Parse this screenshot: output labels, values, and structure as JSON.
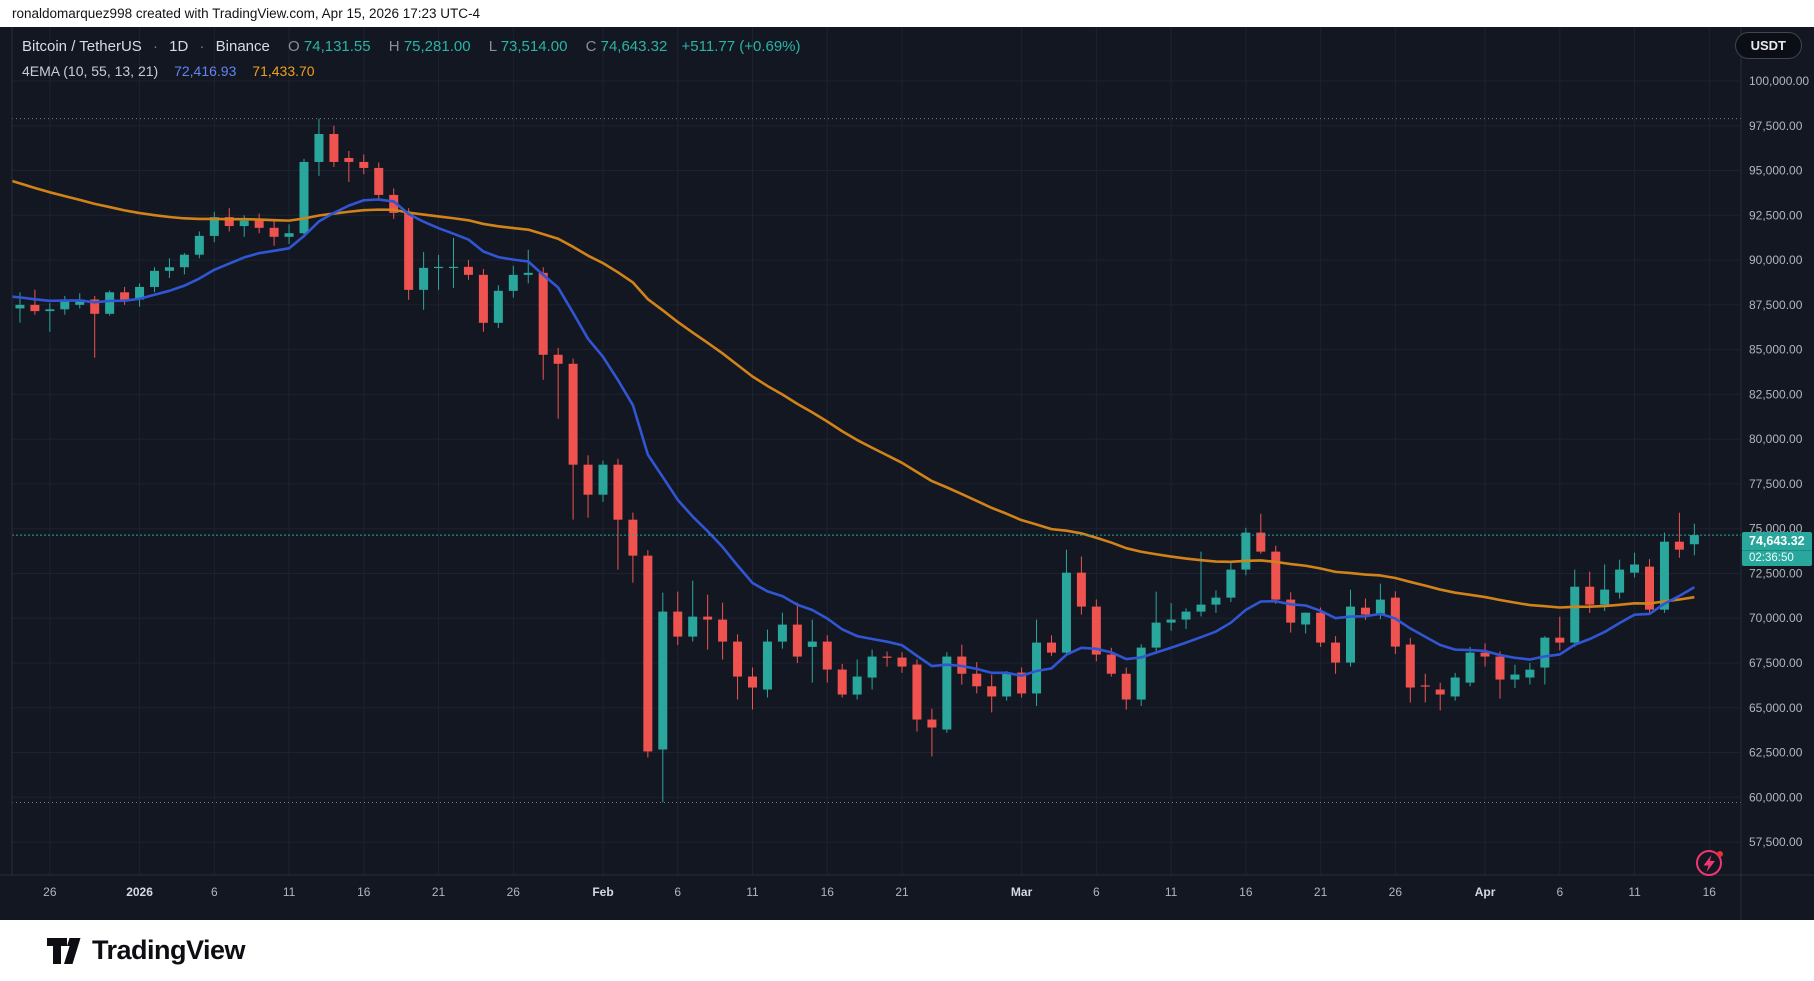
{
  "attribution": "ronaldomarquez998 created with TradingView.com, Apr 15, 2026 17:23 UTC-4",
  "header": {
    "symbol_title": "Bitcoin / TetherUS",
    "interval": "1D",
    "exchange": "Binance",
    "sep": "·",
    "ohlc": {
      "o_label": "O",
      "o": "74,131.55",
      "h_label": "H",
      "h": "75,281.00",
      "l_label": "L",
      "l": "73,514.00",
      "c_label": "C",
      "c": "74,643.32",
      "change": "+511.77 (+0.69%)"
    },
    "indicator": {
      "title": "4EMA (10, 55, 13, 21)",
      "value_fast": "72,416.93",
      "value_slow": "71,433.70"
    }
  },
  "axis_right": {
    "currency_button": "USDT",
    "labels": [
      {
        "v": 100000,
        "label": "100,000.00"
      },
      {
        "v": 97500,
        "label": "97,500.00"
      },
      {
        "v": 95000,
        "label": "95,000.00"
      },
      {
        "v": 92500,
        "label": "92,500.00"
      },
      {
        "v": 90000,
        "label": "90,000.00"
      },
      {
        "v": 87500,
        "label": "87,500.00"
      },
      {
        "v": 85000,
        "label": "85,000.00"
      },
      {
        "v": 82500,
        "label": "82,500.00"
      },
      {
        "v": 80000,
        "label": "80,000.00"
      },
      {
        "v": 77500,
        "label": "77,500.00"
      },
      {
        "v": 75000,
        "label": "75,000.00"
      },
      {
        "v": 72500,
        "label": "72,500.00"
      },
      {
        "v": 70000,
        "label": "70,000.00"
      },
      {
        "v": 67500,
        "label": "67,500.00"
      },
      {
        "v": 65000,
        "label": "65,000.00"
      },
      {
        "v": 62500,
        "label": "62,500.00"
      },
      {
        "v": 60000,
        "label": "60,000.00"
      },
      {
        "v": 57500,
        "label": "57,500.00"
      }
    ]
  },
  "price_badge": {
    "price": "74,643.32",
    "countdown": "02:36:50"
  },
  "time_axis": {
    "ticks": [
      {
        "i": 3,
        "label": "26",
        "bold": false
      },
      {
        "i": 9,
        "label": "2026",
        "bold": true
      },
      {
        "i": 14,
        "label": "6",
        "bold": false
      },
      {
        "i": 19,
        "label": "11",
        "bold": false
      },
      {
        "i": 24,
        "label": "16",
        "bold": false
      },
      {
        "i": 29,
        "label": "21",
        "bold": false
      },
      {
        "i": 34,
        "label": "26",
        "bold": false
      },
      {
        "i": 40,
        "label": "Feb",
        "bold": true
      },
      {
        "i": 45,
        "label": "6",
        "bold": false
      },
      {
        "i": 50,
        "label": "11",
        "bold": false
      },
      {
        "i": 55,
        "label": "16",
        "bold": false
      },
      {
        "i": 60,
        "label": "21",
        "bold": false
      },
      {
        "i": 68,
        "label": "Mar",
        "bold": true
      },
      {
        "i": 73,
        "label": "6",
        "bold": false
      },
      {
        "i": 78,
        "label": "11",
        "bold": false
      },
      {
        "i": 83,
        "label": "16",
        "bold": false
      },
      {
        "i": 88,
        "label": "21",
        "bold": false
      },
      {
        "i": 93,
        "label": "26",
        "bold": false
      },
      {
        "i": 99,
        "label": "Apr",
        "bold": true
      },
      {
        "i": 104,
        "label": "6",
        "bold": false
      },
      {
        "i": 109,
        "label": "11",
        "bold": false
      },
      {
        "i": 114,
        "label": "16",
        "bold": false
      }
    ]
  },
  "logo": {
    "text": "TradingView"
  },
  "colors": {
    "bg": "#131722",
    "grid": "#1e2230",
    "up": "#2aa79d",
    "down": "#ef5350",
    "ema_fast": "#3156d3",
    "ema_slow": "#d1831a",
    "axis_text": "#b2b5be",
    "axis_text_bold": "#d6d9e0",
    "range_dotted": "#787b86",
    "price_line": "#2aa79d",
    "separator": "#2a2e39",
    "badge_bg": "#2aa79d",
    "event_pink": "#f23674"
  },
  "chart_data": {
    "type": "candlestick",
    "title": "Bitcoin / TetherUS · 1D · Binance",
    "symbol": "BTCUSDT",
    "interval": "1D",
    "legend": [
      "EMA fast (blue) 72,416.93",
      "EMA slow (orange) 71,433.70"
    ],
    "y_axis": {
      "min": 56000,
      "max": 101200,
      "tick_step": 2500,
      "grid": true
    },
    "range_high_line": 97900,
    "range_low_line": 59710,
    "last_price": 74643.32,
    "ema_fast": {
      "period": 13,
      "seed": 88100
    },
    "ema_slow": {
      "period": 55,
      "seed": 94800
    },
    "candles": [
      [
        "2025-12-23",
        87700,
        88100,
        86900,
        87300
      ],
      [
        "2025-12-24",
        87300,
        88200,
        86500,
        87500
      ],
      [
        "2025-12-25",
        87500,
        88350,
        86950,
        87150
      ],
      [
        "2025-12-26",
        87150,
        87600,
        86000,
        87250
      ],
      [
        "2025-12-27",
        87250,
        88000,
        86950,
        87800
      ],
      [
        "2025-12-28",
        87500,
        88150,
        87300,
        87800
      ],
      [
        "2025-12-29",
        87800,
        88000,
        84550,
        87000
      ],
      [
        "2025-12-30",
        87000,
        88300,
        86900,
        88200
      ],
      [
        "2025-12-31",
        88200,
        88500,
        87500,
        87800
      ],
      [
        "2026-01-01",
        87800,
        88700,
        87400,
        88500
      ],
      [
        "2026-01-02",
        88500,
        89600,
        88200,
        89400
      ],
      [
        "2026-01-03",
        89400,
        90100,
        89000,
        89600
      ],
      [
        "2026-01-04",
        89600,
        90400,
        89200,
        90300
      ],
      [
        "2026-01-05",
        90300,
        91600,
        90100,
        91350
      ],
      [
        "2026-01-06",
        91350,
        92700,
        91000,
        92400
      ],
      [
        "2026-01-07",
        92400,
        92900,
        91600,
        91900
      ],
      [
        "2026-01-08",
        91900,
        92500,
        91300,
        92200
      ],
      [
        "2026-01-09",
        92200,
        92600,
        91500,
        91800
      ],
      [
        "2026-01-10",
        91800,
        92300,
        90800,
        91300
      ],
      [
        "2026-01-11",
        91300,
        92000,
        90900,
        91500
      ],
      [
        "2026-01-12",
        91500,
        95650,
        91300,
        95480
      ],
      [
        "2026-01-13",
        95480,
        97900,
        94700,
        97040
      ],
      [
        "2026-01-14",
        97040,
        97500,
        95200,
        95480
      ],
      [
        "2026-01-15",
        95700,
        96090,
        94365,
        95480
      ],
      [
        "2026-01-16",
        95480,
        95900,
        94800,
        95145
      ],
      [
        "2026-01-17",
        95145,
        95450,
        93400,
        93639
      ],
      [
        "2026-01-18",
        93639,
        94000,
        92300,
        92634
      ],
      [
        "2026-01-19",
        92634,
        92900,
        87780,
        88338
      ],
      [
        "2026-01-20",
        88338,
        90458,
        87222,
        89566
      ],
      [
        "2026-01-21",
        89566,
        90291,
        88338,
        89620
      ],
      [
        "2026-01-22",
        89620,
        91240,
        88450,
        89622
      ],
      [
        "2026-01-23",
        89622,
        90000,
        88900,
        89175
      ],
      [
        "2026-01-24",
        89175,
        89500,
        85994,
        86496
      ],
      [
        "2026-01-25",
        86496,
        88600,
        86200,
        88282
      ],
      [
        "2026-01-26",
        88282,
        89678,
        87900,
        89175
      ],
      [
        "2026-01-27",
        89175,
        90570,
        88700,
        89287
      ],
      [
        "2026-01-28",
        89287,
        89600,
        83316,
        84712
      ],
      [
        "2026-01-29",
        84712,
        85100,
        81140,
        84209
      ],
      [
        "2026-01-30",
        84209,
        84500,
        75506,
        78574
      ],
      [
        "2026-01-31",
        78574,
        79100,
        75617,
        76900
      ],
      [
        "2026-02-01",
        76900,
        78800,
        76500,
        78574
      ],
      [
        "2026-02-02",
        78574,
        78900,
        72713,
        75503
      ],
      [
        "2026-02-03",
        75503,
        75900,
        71985,
        73494
      ],
      [
        "2026-02-04",
        73494,
        73800,
        62225,
        62560
      ],
      [
        "2026-02-05",
        62670,
        71430,
        59710,
        70370
      ],
      [
        "2026-02-06",
        70370,
        71485,
        68500,
        68975
      ],
      [
        "2026-02-07",
        68975,
        72099,
        68700,
        70090
      ],
      [
        "2026-02-08",
        70090,
        71317,
        68250,
        69923
      ],
      [
        "2026-02-09",
        69923,
        70871,
        67692,
        68696
      ],
      [
        "2026-02-10",
        68696,
        69100,
        65459,
        66743
      ],
      [
        "2026-02-11",
        66743,
        67250,
        64901,
        66129
      ],
      [
        "2026-02-12",
        66018,
        69365,
        65571,
        68696
      ],
      [
        "2026-02-13",
        68696,
        70313,
        68300,
        69644
      ],
      [
        "2026-02-14",
        69644,
        70871,
        67500,
        67859
      ],
      [
        "2026-02-15",
        68400,
        69923,
        66408,
        68696
      ],
      [
        "2026-02-16",
        68696,
        69050,
        66408,
        67134
      ],
      [
        "2026-02-17",
        67134,
        67450,
        65571,
        65738
      ],
      [
        "2026-02-18",
        65738,
        67692,
        65459,
        66743
      ],
      [
        "2026-02-19",
        66687,
        68250,
        66018,
        67859
      ],
      [
        "2026-02-20",
        67859,
        68138,
        67301,
        67803
      ],
      [
        "2026-02-21",
        67803,
        68100,
        66950,
        67301
      ],
      [
        "2026-02-22",
        67413,
        67700,
        63673,
        64343
      ],
      [
        "2026-02-23",
        64343,
        64950,
        62278,
        63897
      ],
      [
        "2026-02-24",
        63785,
        68100,
        63600,
        67859
      ],
      [
        "2026-02-25",
        67859,
        68529,
        66297,
        66900
      ],
      [
        "2026-02-26",
        66900,
        67550,
        65800,
        66200
      ],
      [
        "2026-02-27",
        66200,
        66850,
        64740,
        65630
      ],
      [
        "2026-02-28",
        65630,
        67050,
        65400,
        66965
      ],
      [
        "2026-03-01",
        66965,
        67250,
        65570,
        65800
      ],
      [
        "2026-03-02",
        65800,
        69925,
        65100,
        68640
      ],
      [
        "2026-03-03",
        68640,
        69050,
        67900,
        68080
      ],
      [
        "2026-03-04",
        68080,
        73830,
        67950,
        72545
      ],
      [
        "2026-03-05",
        72545,
        73450,
        70200,
        70650
      ],
      [
        "2026-03-06",
        70650,
        71050,
        67600,
        67970
      ],
      [
        "2026-03-07",
        67970,
        68350,
        66740,
        66900
      ],
      [
        "2026-03-08",
        66900,
        67250,
        64900,
        65460
      ],
      [
        "2026-03-09",
        65460,
        68550,
        65100,
        68360
      ],
      [
        "2026-03-10",
        68360,
        71485,
        68000,
        69755
      ],
      [
        "2026-03-11",
        69755,
        70850,
        69300,
        69925
      ],
      [
        "2026-03-12",
        69925,
        70550,
        69400,
        70370
      ],
      [
        "2026-03-13",
        70370,
        73720,
        70100,
        70760
      ],
      [
        "2026-03-14",
        70760,
        71550,
        70300,
        71150
      ],
      [
        "2026-03-15",
        71150,
        73160,
        70900,
        72715
      ],
      [
        "2026-03-16",
        72715,
        75050,
        72400,
        74780
      ],
      [
        "2026-03-17",
        74780,
        75835,
        73600,
        73720
      ],
      [
        "2026-03-18",
        73720,
        74050,
        70800,
        71040
      ],
      [
        "2026-03-19",
        71040,
        71450,
        69200,
        69755
      ],
      [
        "2026-03-20",
        69650,
        70310,
        69150,
        70310
      ],
      [
        "2026-03-21",
        70310,
        70600,
        68400,
        68640
      ],
      [
        "2026-03-22",
        68640,
        69000,
        66900,
        67525
      ],
      [
        "2026-03-23",
        67525,
        71600,
        67300,
        70650
      ],
      [
        "2026-03-24",
        70590,
        71100,
        69900,
        70205
      ],
      [
        "2026-03-25",
        70205,
        71930,
        69950,
        71040
      ],
      [
        "2026-03-26",
        71150,
        71500,
        68000,
        68415
      ],
      [
        "2026-03-27",
        68530,
        68900,
        65290,
        66130
      ],
      [
        "2026-03-28",
        66250,
        66900,
        65300,
        66185
      ],
      [
        "2026-03-29",
        66020,
        66400,
        64850,
        65740
      ],
      [
        "2026-03-30",
        65630,
        66950,
        65400,
        66690
      ],
      [
        "2026-03-31",
        66405,
        68400,
        66200,
        68080
      ],
      [
        "2026-04-01",
        68080,
        68600,
        67300,
        67860
      ],
      [
        "2026-04-02",
        67860,
        68150,
        65510,
        66575
      ],
      [
        "2026-04-03",
        66575,
        67400,
        66100,
        66855
      ],
      [
        "2026-04-04",
        66690,
        67500,
        66300,
        67130
      ],
      [
        "2026-04-05",
        67245,
        69000,
        66300,
        68915
      ],
      [
        "2026-04-06",
        68915,
        70090,
        68200,
        68640
      ],
      [
        "2026-04-07",
        68640,
        72715,
        68400,
        71760
      ],
      [
        "2026-04-08",
        71760,
        72600,
        70300,
        70760
      ],
      [
        "2026-04-09",
        70760,
        73000,
        70400,
        71600
      ],
      [
        "2026-04-10",
        71430,
        73270,
        71100,
        72715
      ],
      [
        "2026-04-11",
        72545,
        73660,
        72270,
        73000
      ],
      [
        "2026-04-12",
        72880,
        73300,
        70200,
        70480
      ],
      [
        "2026-04-13",
        70480,
        74775,
        70300,
        74275
      ],
      [
        "2026-04-14",
        74275,
        75895,
        73380,
        73830
      ],
      [
        "2026-04-15",
        74131.55,
        75281,
        73514,
        74643.32
      ]
    ]
  }
}
